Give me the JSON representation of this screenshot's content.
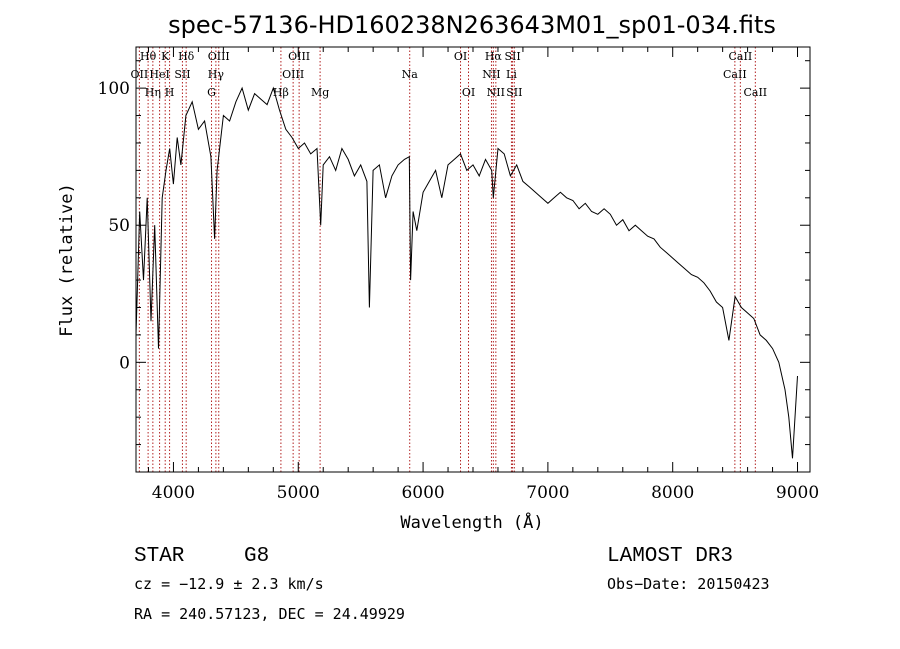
{
  "chart_data": {
    "type": "line",
    "title": "spec-57136-HD160238N263643M01_sp01-034.fits",
    "xlabel": "Wavelength (Å)",
    "ylabel": "Flux (relative)",
    "xlim": [
      3700,
      9100
    ],
    "ylim": [
      -40,
      115
    ],
    "x_ticks": [
      4000,
      5000,
      6000,
      7000,
      8000,
      9000
    ],
    "y_ticks": [
      0,
      50,
      100
    ],
    "grid": false,
    "series": [
      {
        "color": "#000000",
        "x": [
          3700,
          3730,
          3760,
          3790,
          3820,
          3850,
          3880,
          3910,
          3940,
          3970,
          4000,
          4030,
          4060,
          4100,
          4150,
          4200,
          4250,
          4300,
          4330,
          4350,
          4400,
          4450,
          4500,
          4550,
          4600,
          4650,
          4700,
          4750,
          4800,
          4850,
          4900,
          4950,
          5000,
          5050,
          5100,
          5150,
          5180,
          5200,
          5250,
          5300,
          5350,
          5400,
          5450,
          5500,
          5550,
          5570,
          5600,
          5650,
          5700,
          5750,
          5800,
          5850,
          5890,
          5900,
          5920,
          5950,
          6000,
          6050,
          6100,
          6150,
          6200,
          6250,
          6300,
          6350,
          6400,
          6450,
          6500,
          6550,
          6563,
          6600,
          6650,
          6700,
          6750,
          6800,
          6850,
          6900,
          6950,
          7000,
          7050,
          7100,
          7150,
          7200,
          7250,
          7300,
          7350,
          7400,
          7450,
          7500,
          7550,
          7600,
          7650,
          7700,
          7750,
          7800,
          7850,
          7900,
          7950,
          8000,
          8050,
          8100,
          8150,
          8200,
          8250,
          8300,
          8350,
          8400,
          8450,
          8500,
          8550,
          8600,
          8650,
          8700,
          8750,
          8800,
          8850,
          8900,
          8930,
          8960,
          9000
        ],
        "y": [
          10,
          55,
          30,
          60,
          15,
          50,
          5,
          60,
          70,
          78,
          65,
          82,
          72,
          90,
          95,
          85,
          88,
          75,
          45,
          70,
          90,
          88,
          95,
          100,
          92,
          98,
          96,
          94,
          100,
          92,
          85,
          82,
          78,
          80,
          76,
          78,
          50,
          72,
          75,
          70,
          78,
          74,
          68,
          72,
          66,
          20,
          70,
          72,
          60,
          68,
          72,
          74,
          75,
          30,
          55,
          48,
          62,
          66,
          70,
          60,
          72,
          74,
          76,
          70,
          72,
          68,
          74,
          70,
          60,
          78,
          76,
          68,
          72,
          66,
          64,
          62,
          60,
          58,
          60,
          62,
          60,
          59,
          56,
          58,
          55,
          54,
          56,
          54,
          50,
          52,
          48,
          50,
          48,
          46,
          45,
          42,
          40,
          38,
          36,
          34,
          32,
          31,
          29,
          26,
          22,
          20,
          8,
          24,
          20,
          18,
          16,
          10,
          8,
          5,
          0,
          -10,
          -20,
          -35,
          -5
        ]
      }
    ],
    "lines": [
      {
        "label": "Hθ",
        "x": 3797,
        "row": 0
      },
      {
        "label": "OII",
        "x": 3727,
        "row": 1
      },
      {
        "label": "Hη",
        "x": 3835,
        "row": 2
      },
      {
        "label": "K",
        "x": 3934,
        "row": 0
      },
      {
        "label": "HeI",
        "x": 3889,
        "row": 1
      },
      {
        "label": "H",
        "x": 3969,
        "row": 2
      },
      {
        "label": "Hδ",
        "x": 4102,
        "row": 0
      },
      {
        "label": "SII",
        "x": 4072,
        "row": 1
      },
      {
        "label": "OIII",
        "x": 4363,
        "row": 0
      },
      {
        "label": "Hγ",
        "x": 4340,
        "row": 1
      },
      {
        "label": "G",
        "x": 4305,
        "row": 2
      },
      {
        "label": "OIII",
        "x": 5007,
        "row": 0
      },
      {
        "label": "OIII",
        "x": 4959,
        "row": 1
      },
      {
        "label": "Hβ",
        "x": 4861,
        "row": 2
      },
      {
        "label": "Mg",
        "x": 5175,
        "row": 2
      },
      {
        "label": "Na",
        "x": 5893,
        "row": 1
      },
      {
        "label": "OI",
        "x": 6300,
        "row": 0
      },
      {
        "label": "OI",
        "x": 6364,
        "row": 2
      },
      {
        "label": "Hα",
        "x": 6563,
        "row": 0
      },
      {
        "label": "NII",
        "x": 6548,
        "row": 1
      },
      {
        "label": "NII",
        "x": 6583,
        "row": 2
      },
      {
        "label": "SII",
        "x": 6717,
        "row": 0
      },
      {
        "label": "Li",
        "x": 6708,
        "row": 1
      },
      {
        "label": "SII",
        "x": 6731,
        "row": 2
      },
      {
        "label": "CaII",
        "x": 8542,
        "row": 0
      },
      {
        "label": "CaII",
        "x": 8498,
        "row": 1
      },
      {
        "label": "CaII",
        "x": 8662,
        "row": 2
      }
    ],
    "line_color": "#b22222"
  },
  "footer": {
    "object_class": "STAR",
    "subclass": "G8",
    "survey": "LAMOST DR3",
    "cz": "cz = −12.9 ± 2.3 km/s",
    "obs_date": "Obs−Date: 20150423",
    "coords": "RA = 240.57123, DEC =  24.49929"
  }
}
